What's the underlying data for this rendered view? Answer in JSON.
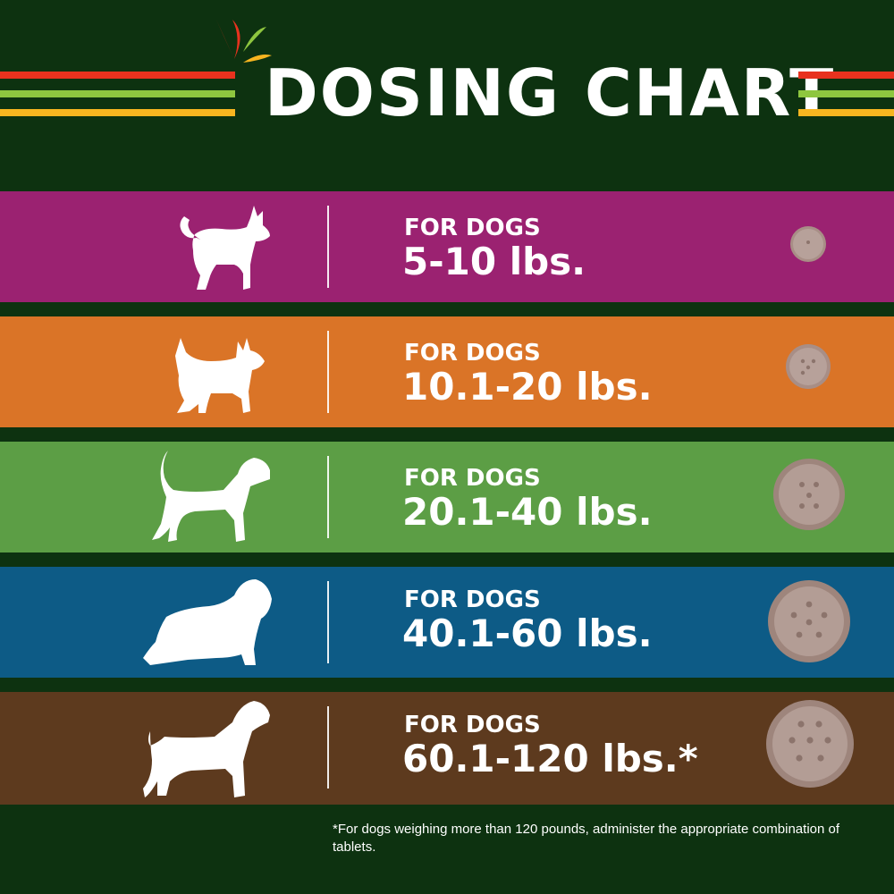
{
  "header": {
    "title": "DOSING CHART",
    "stripe_colors": [
      "#e8321e",
      "#8ec63f",
      "#f7b520"
    ]
  },
  "bands": [
    {
      "line1": "FOR DOGS",
      "line2": "5-10 lbs.",
      "color": "#9b2271",
      "dog_icon": "small-terrier-dog-icon",
      "tablet_icon": "tablet-icon"
    },
    {
      "line1": "FOR DOGS",
      "line2": "10.1-20 lbs.",
      "color": "#da7427",
      "dog_icon": "cairn-terrier-dog-icon",
      "tablet_icon": "tablet-icon"
    },
    {
      "line1": "FOR DOGS",
      "line2": "20.1-40 lbs.",
      "color": "#5c9e45",
      "dog_icon": "beagle-dog-icon",
      "tablet_icon": "tablet-icon"
    },
    {
      "line1": "FOR DOGS",
      "line2": "40.1-60 lbs.",
      "color": "#0d5b86",
      "dog_icon": "sheepdog-dog-icon",
      "tablet_icon": "tablet-icon"
    },
    {
      "line1": "FOR DOGS",
      "line2": "60.1-120 lbs.*",
      "color": "#5d3a1e",
      "dog_icon": "large-dog-icon",
      "tablet_icon": "tablet-icon"
    }
  ],
  "footnote": "*For dogs weighing more than 120 pounds, administer the appropriate combination of tablets.",
  "background_color": "#0d3210"
}
